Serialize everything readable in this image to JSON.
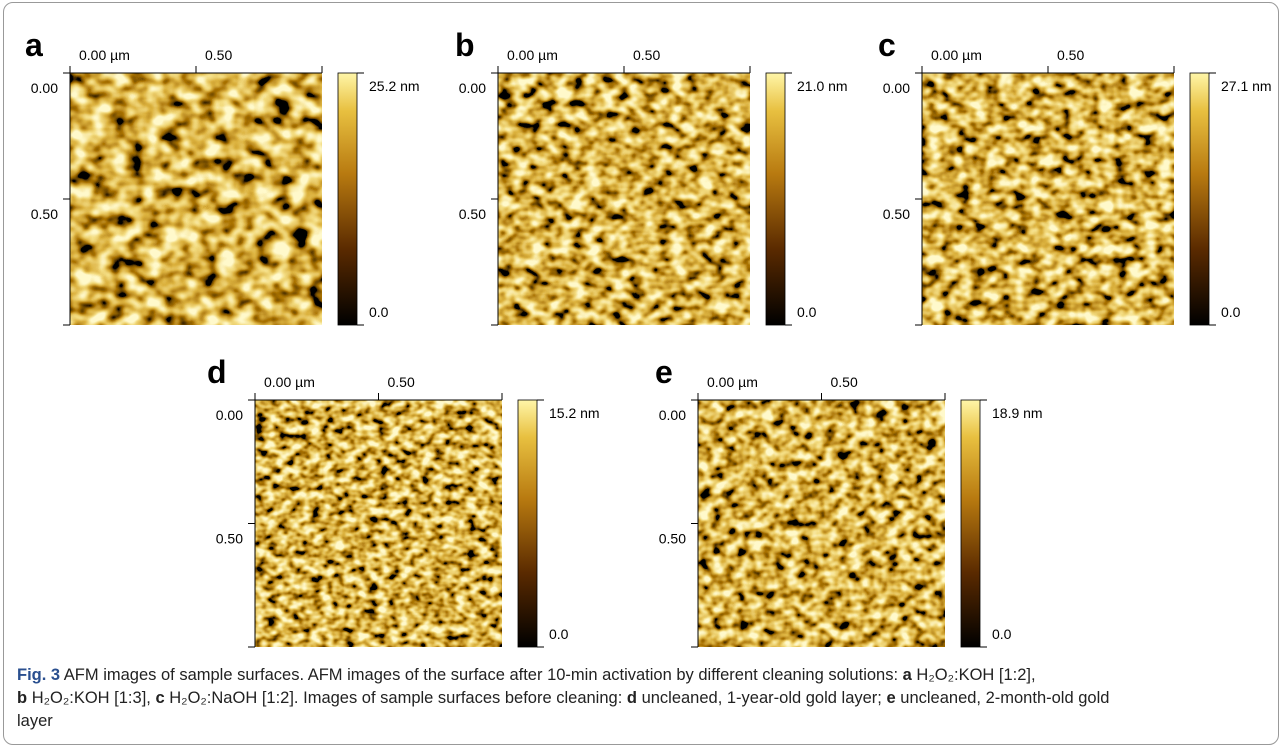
{
  "panels": [
    {
      "label": "a",
      "x_tick_labels": [
        "0.00 µm",
        "0.50"
      ],
      "y_tick_labels": [
        "0.00",
        "0.50"
      ],
      "colorbar_max": "25.2 nm",
      "colorbar_min": "0.0"
    },
    {
      "label": "b",
      "x_tick_labels": [
        "0.00 µm",
        "0.50"
      ],
      "y_tick_labels": [
        "0.00",
        "0.50"
      ],
      "colorbar_max": "21.0 nm",
      "colorbar_min": "0.0"
    },
    {
      "label": "c",
      "x_tick_labels": [
        "0.00 µm",
        "0.50"
      ],
      "y_tick_labels": [
        "0.00",
        "0.50"
      ],
      "colorbar_max": "27.1 nm",
      "colorbar_min": "0.0"
    },
    {
      "label": "d",
      "x_tick_labels": [
        "0.00 µm",
        "0.50"
      ],
      "y_tick_labels": [
        "0.00",
        "0.50"
      ],
      "colorbar_max": "15.2 nm",
      "colorbar_min": "0.0"
    },
    {
      "label": "e",
      "x_tick_labels": [
        "0.00 µm",
        "0.50"
      ],
      "y_tick_labels": [
        "0.00",
        "0.50"
      ],
      "colorbar_max": "18.9 nm",
      "colorbar_min": "0.0"
    }
  ],
  "caption": {
    "figure_label": "Fig. 3",
    "sentence_1": "AFM images of sample surfaces.",
    "sentence_2": "AFM images of the surface after 10-min activation by different cleaning solutions:",
    "group_1": [
      {
        "letter": "a",
        "text": "H₂O₂:KOH [1:2],"
      },
      {
        "letter": "b",
        "text": "H₂O₂:KOH [1:3],"
      },
      {
        "letter": "c",
        "text": "H₂O₂:NaOH [1:2]."
      }
    ],
    "sentence_3": "Images of sample surfaces before cleaning:",
    "group_2": [
      {
        "letter": "d",
        "text": "uncleaned, 1-year-old gold layer;"
      },
      {
        "letter": "e",
        "text": "uncleaned, 2-month-old gold layer"
      }
    ]
  }
}
